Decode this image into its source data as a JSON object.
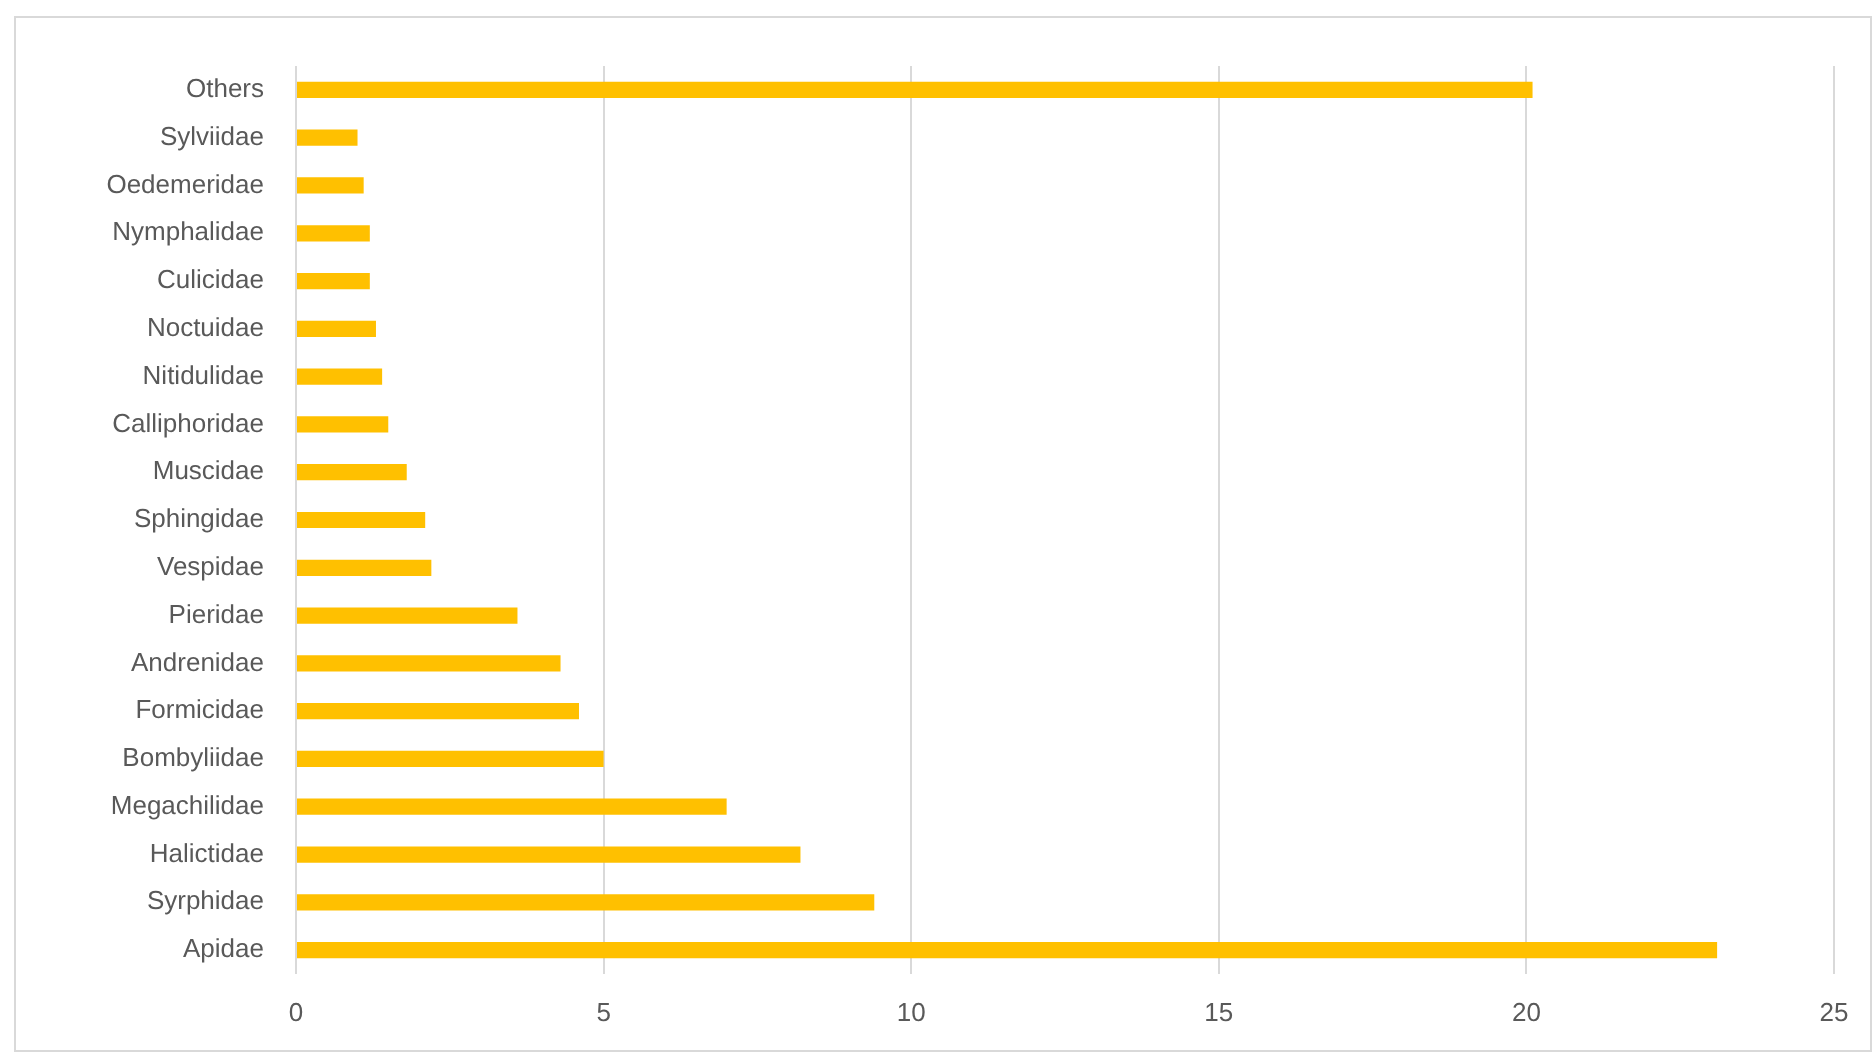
{
  "chart_data": {
    "type": "bar",
    "orientation": "horizontal",
    "categories": [
      "Others",
      "Sylviidae",
      "Oedemeridae",
      "Nymphalidae",
      "Culicidae",
      "Noctuidae",
      "Nitidulidae",
      "Calliphoridae",
      "Muscidae",
      "Sphingidae",
      "Vespidae",
      "Pieridae",
      "Andrenidae",
      "Formicidae",
      "Bombyliidae",
      "Megachilidae",
      "Halictidae",
      "Syrphidae",
      "Apidae"
    ],
    "values": [
      20.1,
      1.0,
      1.1,
      1.2,
      1.2,
      1.3,
      1.4,
      1.5,
      1.8,
      2.1,
      2.2,
      3.6,
      4.3,
      4.6,
      5.0,
      7.0,
      8.2,
      9.4,
      23.1
    ],
    "color": "#ffc000",
    "xlim": [
      0,
      25
    ],
    "xticks": [
      0,
      5,
      10,
      15,
      20,
      25
    ],
    "grid": "x"
  }
}
